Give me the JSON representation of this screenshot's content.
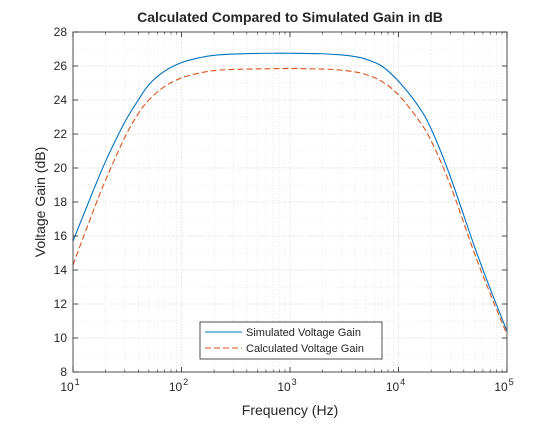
{
  "chart_data": {
    "type": "line",
    "title": "Calculated Compared to Simulated Gain in dB",
    "xlabel": "Frequency (Hz)",
    "ylabel": "Voltage Gain (dB)",
    "xscale": "log",
    "xlim": [
      10,
      100000
    ],
    "ylim": [
      8,
      28
    ],
    "x_ticks": [
      {
        "value": 10,
        "base": "10",
        "exp": "1"
      },
      {
        "value": 100,
        "base": "10",
        "exp": "2"
      },
      {
        "value": 1000,
        "base": "10",
        "exp": "3"
      },
      {
        "value": 10000,
        "base": "10",
        "exp": "4"
      },
      {
        "value": 100000,
        "base": "10",
        "exp": "5"
      }
    ],
    "y_ticks": [
      "8",
      "10",
      "12",
      "14",
      "16",
      "18",
      "20",
      "22",
      "24",
      "26",
      "28"
    ],
    "grid": true,
    "minor_grid": true,
    "legend": {
      "placement": "bottom-center"
    },
    "colors": {
      "simulated": "#0072BD",
      "calculated": "#D95319",
      "axis": "#262626",
      "grid": "#dcdcdc"
    },
    "series": [
      {
        "name": "Simulated Voltage Gain",
        "style": "solid",
        "x": [
          10,
          15,
          20,
          30,
          40,
          50,
          70,
          100,
          150,
          200,
          300,
          500,
          700,
          1000,
          2000,
          3000,
          4000,
          5000,
          7000,
          10000,
          15000,
          20000,
          30000,
          50000,
          70000,
          100000
        ],
        "y": [
          15.7,
          18.5,
          20.4,
          22.7,
          24.0,
          24.9,
          25.7,
          26.2,
          26.5,
          26.63,
          26.7,
          26.74,
          26.75,
          26.75,
          26.72,
          26.65,
          26.55,
          26.4,
          26.0,
          25.1,
          23.7,
          22.3,
          19.5,
          15.4,
          12.9,
          10.4
        ]
      },
      {
        "name": "Calculated Voltage Gain",
        "style": "dashed",
        "x": [
          10,
          15,
          20,
          30,
          40,
          50,
          70,
          100,
          150,
          200,
          300,
          500,
          700,
          1000,
          2000,
          3000,
          4000,
          5000,
          7000,
          10000,
          15000,
          20000,
          30000,
          50000,
          70000,
          100000
        ],
        "y": [
          14.3,
          17.3,
          19.3,
          21.8,
          23.2,
          24.0,
          24.8,
          25.3,
          25.6,
          25.73,
          25.8,
          25.83,
          25.84,
          25.85,
          25.82,
          25.75,
          25.65,
          25.5,
          25.1,
          24.3,
          22.9,
          21.6,
          19.0,
          15.0,
          12.6,
          10.2
        ]
      }
    ]
  }
}
